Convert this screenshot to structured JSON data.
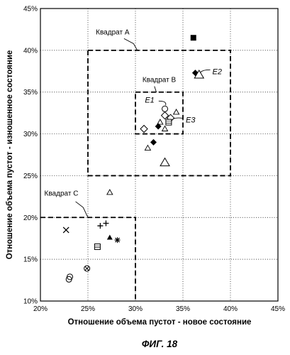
{
  "figure_label": "ФИГ. 18",
  "chart_data": {
    "type": "scatter",
    "xlabel": "Отношение объема пустот - новое состояние",
    "ylabel": "Отношение объема пустот - изношенное состояние",
    "xlim": [
      0.2,
      0.45
    ],
    "ylim": [
      0.1,
      0.45
    ],
    "x_ticks": [
      {
        "value": 0.2,
        "label": "20%"
      },
      {
        "value": 0.25,
        "label": "25%"
      },
      {
        "value": 0.3,
        "label": "30%"
      },
      {
        "value": 0.35,
        "label": "35%"
      },
      {
        "value": 0.4,
        "label": "40%"
      },
      {
        "value": 0.45,
        "label": "45%"
      }
    ],
    "y_ticks": [
      {
        "value": 0.1,
        "label": "10%"
      },
      {
        "value": 0.15,
        "label": "15%"
      },
      {
        "value": 0.2,
        "label": "20%"
      },
      {
        "value": 0.25,
        "label": "25%"
      },
      {
        "value": 0.3,
        "label": "30%"
      },
      {
        "value": 0.35,
        "label": "35%"
      },
      {
        "value": 0.4,
        "label": "40%"
      },
      {
        "value": 0.45,
        "label": "45%"
      }
    ],
    "grid": true,
    "regions": [
      {
        "label": "Квадрат A",
        "x": [
          0.25,
          0.4
        ],
        "y": [
          0.25,
          0.4
        ]
      },
      {
        "label": "Квадрат B",
        "x": [
          0.3,
          0.35
        ],
        "y": [
          0.3,
          0.35
        ]
      },
      {
        "label": "Квадрат C",
        "x": [
          0.2,
          0.3
        ],
        "y": [
          0.1,
          0.2
        ]
      }
    ],
    "points": [
      {
        "x": 0.361,
        "y": 0.415,
        "marker": "square-filled"
      },
      {
        "x": 0.363,
        "y": 0.373,
        "marker": "diamond-filled"
      },
      {
        "x": 0.367,
        "y": 0.371,
        "marker": "triangle-open-large"
      },
      {
        "x": 0.331,
        "y": 0.33,
        "marker": "circle-open"
      },
      {
        "x": 0.331,
        "y": 0.322,
        "marker": "diamond-open"
      },
      {
        "x": 0.337,
        "y": 0.319,
        "marker": "diamond-open"
      },
      {
        "x": 0.335,
        "y": 0.314,
        "marker": "square-hatched"
      },
      {
        "x": 0.343,
        "y": 0.326,
        "marker": "triangle-open"
      },
      {
        "x": 0.331,
        "y": 0.306,
        "marker": "triangle-open"
      },
      {
        "x": 0.326,
        "y": 0.314,
        "marker": "triangle-open"
      },
      {
        "x": 0.324,
        "y": 0.309,
        "marker": "diamond-filled"
      },
      {
        "x": 0.309,
        "y": 0.306,
        "marker": "diamond-open"
      },
      {
        "x": 0.319,
        "y": 0.29,
        "marker": "diamond-filled"
      },
      {
        "x": 0.313,
        "y": 0.283,
        "marker": "triangle-open"
      },
      {
        "x": 0.331,
        "y": 0.266,
        "marker": "triangle-open-large"
      },
      {
        "x": 0.273,
        "y": 0.23,
        "marker": "triangle-open"
      },
      {
        "x": 0.227,
        "y": 0.185,
        "marker": "x"
      },
      {
        "x": 0.263,
        "y": 0.19,
        "marker": "plus"
      },
      {
        "x": 0.269,
        "y": 0.193,
        "marker": "plus"
      },
      {
        "x": 0.273,
        "y": 0.176,
        "marker": "triangle-filled"
      },
      {
        "x": 0.281,
        "y": 0.173,
        "marker": "asterisk"
      },
      {
        "x": 0.26,
        "y": 0.165,
        "marker": "square-hatched"
      },
      {
        "x": 0.249,
        "y": 0.139,
        "marker": "circle-x"
      },
      {
        "x": 0.23,
        "y": 0.126,
        "marker": "circle-open"
      },
      {
        "x": 0.231,
        "y": 0.129,
        "marker": "circle-open"
      }
    ],
    "annotations": [
      {
        "label": "E1",
        "target": [
          0.331,
          0.33
        ],
        "text_at": [
          0.32,
          0.341
        ]
      },
      {
        "label": "E2",
        "target": [
          0.366,
          0.37
        ],
        "text_at": [
          0.381,
          0.375
        ]
      },
      {
        "label": "E3",
        "target": [
          0.335,
          0.314
        ],
        "text_at": [
          0.353,
          0.317
        ]
      }
    ]
  }
}
